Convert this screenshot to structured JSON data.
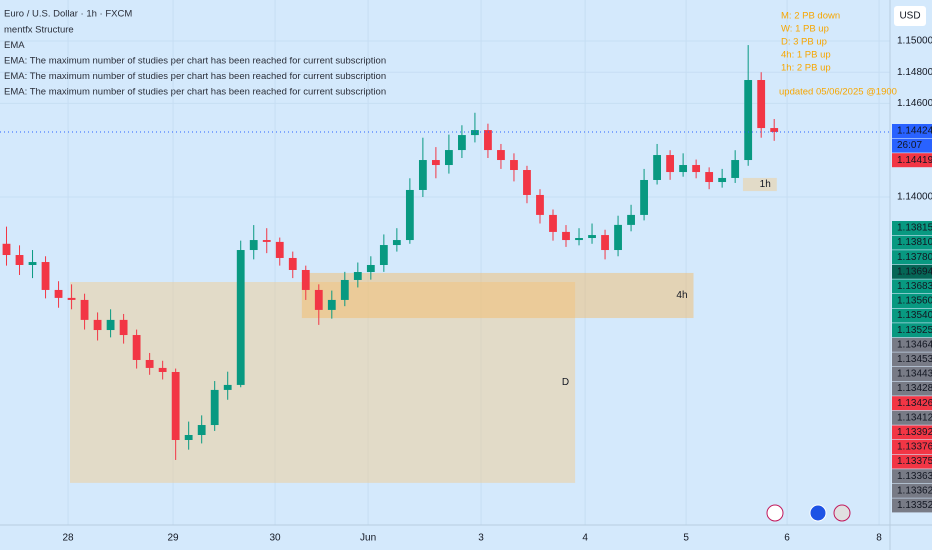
{
  "chart_data": {
    "type": "candlestick",
    "title": "Euro / U.S. Dollar · 1h · FXCM",
    "indicators": [
      "mentfx Structure",
      "EMA",
      "EMA: The maximum number of studies per chart has been reached for current subscription",
      "EMA: The maximum number of studies per chart has been reached for current subscription",
      "EMA: The maximum number of studies per chart has been reached for current subscription"
    ],
    "annotations": [
      "M: 2 PB down",
      "W: 1 PB up",
      "D:  3 PB  up",
      "4h: 1 PB up",
      "1h: 2 PB up",
      "updated 05/06/2025 @1900"
    ],
    "currency": "USD",
    "up_color": "#089981",
    "down_color": "#f23645",
    "ohlc": [
      [
        1.137,
        1.1381,
        1.1356,
        1.13628
      ],
      [
        1.13628,
        1.1369,
        1.135,
        1.13564
      ],
      [
        1.13564,
        1.1366,
        1.1348,
        1.13583
      ],
      [
        1.13583,
        1.1362,
        1.1335,
        1.13404
      ],
      [
        1.13404,
        1.1346,
        1.1329,
        1.13353
      ],
      [
        1.13353,
        1.1344,
        1.1328,
        1.1334
      ],
      [
        1.1334,
        1.1338,
        1.1315,
        1.13212
      ],
      [
        1.13212,
        1.1326,
        1.1308,
        1.13147
      ],
      [
        1.13147,
        1.1328,
        1.131,
        1.13212
      ],
      [
        1.13212,
        1.1325,
        1.1306,
        1.13115
      ],
      [
        1.13115,
        1.1315,
        1.129,
        1.12955
      ],
      [
        1.12955,
        1.13,
        1.1286,
        1.12904
      ],
      [
        1.12904,
        1.1295,
        1.1283,
        1.12878
      ],
      [
        1.12878,
        1.129,
        1.12314,
        1.12442
      ],
      [
        1.12442,
        1.1256,
        1.1238,
        1.12474
      ],
      [
        1.12474,
        1.126,
        1.1242,
        1.12538
      ],
      [
        1.12538,
        1.1282,
        1.125,
        1.12763
      ],
      [
        1.12763,
        1.1288,
        1.127,
        1.12795
      ],
      [
        1.12795,
        1.1372,
        1.1278,
        1.1366
      ],
      [
        1.1366,
        1.1382,
        1.136,
        1.13724
      ],
      [
        1.13724,
        1.138,
        1.1364,
        1.13712
      ],
      [
        1.13712,
        1.1374,
        1.1356,
        1.13609
      ],
      [
        1.13609,
        1.1365,
        1.1348,
        1.13532
      ],
      [
        1.13532,
        1.1356,
        1.1334,
        1.13404
      ],
      [
        1.13404,
        1.1344,
        1.1318,
        1.13276
      ],
      [
        1.13276,
        1.134,
        1.1322,
        1.1334
      ],
      [
        1.1334,
        1.1352,
        1.133,
        1.13468
      ],
      [
        1.13468,
        1.1358,
        1.1342,
        1.13519
      ],
      [
        1.13519,
        1.1362,
        1.1347,
        1.13564
      ],
      [
        1.13564,
        1.1376,
        1.1352,
        1.13692
      ],
      [
        1.13692,
        1.138,
        1.1365,
        1.13724
      ],
      [
        1.13724,
        1.1412,
        1.137,
        1.14045
      ],
      [
        1.14045,
        1.1438,
        1.14,
        1.14237
      ],
      [
        1.14237,
        1.1432,
        1.1412,
        1.14205
      ],
      [
        1.14205,
        1.144,
        1.1415,
        1.14301
      ],
      [
        1.14301,
        1.1446,
        1.1425,
        1.14397
      ],
      [
        1.14397,
        1.1454,
        1.1435,
        1.14429
      ],
      [
        1.14429,
        1.1447,
        1.1425,
        1.14301
      ],
      [
        1.14301,
        1.1434,
        1.1418,
        1.14237
      ],
      [
        1.14237,
        1.1428,
        1.141,
        1.14173
      ],
      [
        1.14173,
        1.142,
        1.1396,
        1.14013
      ],
      [
        1.14013,
        1.1405,
        1.1383,
        1.13885
      ],
      [
        1.13885,
        1.1392,
        1.1372,
        1.13776
      ],
      [
        1.13776,
        1.1382,
        1.1368,
        1.13724
      ],
      [
        1.13724,
        1.138,
        1.1369,
        1.13737
      ],
      [
        1.13737,
        1.1383,
        1.137,
        1.13756
      ],
      [
        1.13756,
        1.1379,
        1.136,
        1.1366
      ],
      [
        1.1366,
        1.1388,
        1.1362,
        1.13821
      ],
      [
        1.13821,
        1.1395,
        1.1378,
        1.13885
      ],
      [
        1.13885,
        1.1418,
        1.1385,
        1.14109
      ],
      [
        1.14109,
        1.1434,
        1.1408,
        1.14269
      ],
      [
        1.14269,
        1.143,
        1.1411,
        1.1416
      ],
      [
        1.1416,
        1.1428,
        1.1413,
        1.14205
      ],
      [
        1.14205,
        1.1424,
        1.1412,
        1.1416
      ],
      [
        1.1416,
        1.1419,
        1.1405,
        1.14096
      ],
      [
        1.14096,
        1.1418,
        1.1406,
        1.14122
      ],
      [
        1.14122,
        1.143,
        1.1409,
        1.14237
      ],
      [
        1.14237,
        1.14974,
        1.142,
        1.1475
      ],
      [
        1.1475,
        1.148,
        1.1438,
        1.14442
      ],
      [
        1.14442,
        1.145,
        1.1436,
        1.14417
      ]
    ],
    "zones": [
      {
        "label": "D",
        "x": [
          5.38,
          44.2
        ],
        "y": [
          1.13455,
          1.12167
        ],
        "color": "#f5c98a"
      },
      {
        "label": "4h",
        "x": [
          23.2,
          53.3
        ],
        "y": [
          1.13513,
          1.13224
        ],
        "color": "#f7b860"
      },
      {
        "label": "1h",
        "x": [
          57.1,
          59.7
        ],
        "y": [
          1.14122,
          1.14038
        ],
        "color": "#f5c98a"
      }
    ],
    "xlim": [
      0,
      68.4
    ],
    "xticks": [
      {
        "value": 5.23,
        "label": "28"
      },
      {
        "value": 13.3,
        "label": "29"
      },
      {
        "value": 21.14,
        "label": "30"
      },
      {
        "value": 28.29,
        "label": "Jun"
      },
      {
        "value": 36.97,
        "label": "3"
      },
      {
        "value": 44.97,
        "label": "4"
      },
      {
        "value": 52.73,
        "label": "5"
      },
      {
        "value": 60.49,
        "label": "6"
      },
      {
        "value": 67.56,
        "label": "8"
      }
    ],
    "ylim": [
      1.11897,
      1.15263
    ],
    "yticks": [
      {
        "value": 1.15,
        "label": "1.15000"
      },
      {
        "value": 1.148,
        "label": "1.14800"
      },
      {
        "value": 1.146,
        "label": "1.14600"
      },
      {
        "value": 1.14,
        "label": "1.14000"
      }
    ],
    "grid": true,
    "price_labels": [
      {
        "text": "1.14424",
        "color": "#2962ff"
      },
      {
        "text": "26:07",
        "color": "#2962ff"
      },
      {
        "text": "1.14419",
        "color": "#f23645"
      }
    ],
    "level_labels": [
      {
        "text": "1.13815",
        "color": "#089981"
      },
      {
        "text": "1.13810",
        "color": "#089981"
      },
      {
        "text": "1.13780",
        "color": "#089981"
      },
      {
        "text": "1.13694",
        "color": "#056656"
      },
      {
        "text": "1.13683",
        "color": "#089981"
      },
      {
        "text": "1.13560",
        "color": "#089981"
      },
      {
        "text": "1.13540",
        "color": "#089981"
      },
      {
        "text": "1.13525",
        "color": "#089981"
      },
      {
        "text": "1.13464",
        "color": "#787b86"
      },
      {
        "text": "1.13453",
        "color": "#787b86"
      },
      {
        "text": "1.13443",
        "color": "#787b86"
      },
      {
        "text": "1.13428",
        "color": "#787b86"
      },
      {
        "text": "1.13426",
        "color": "#f23645"
      },
      {
        "text": "1.13412",
        "color": "#787b86"
      },
      {
        "text": "1.13392",
        "color": "#f23645"
      },
      {
        "text": "1.13376",
        "color": "#f23645"
      },
      {
        "text": "1.13375",
        "color": "#f23645"
      },
      {
        "text": "1.13363",
        "color": "#787b86"
      },
      {
        "text": "1.13362",
        "color": "#787b86"
      },
      {
        "text": "1.13352",
        "color": "#787b86"
      }
    ]
  }
}
